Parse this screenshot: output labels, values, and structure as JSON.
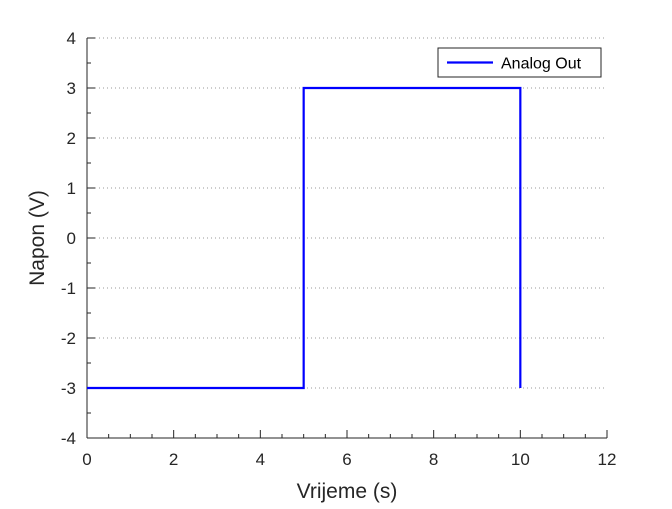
{
  "chart_data": {
    "type": "line",
    "xlabel": "Vrijeme (s)",
    "ylabel": "Napon (V)",
    "xlim": [
      0,
      12
    ],
    "ylim": [
      -4,
      4
    ],
    "xticks": [
      "0",
      "2",
      "4",
      "6",
      "8",
      "10",
      "12"
    ],
    "yticks": [
      "-4",
      "-3",
      "-2",
      "-1",
      "0",
      "1",
      "2",
      "3",
      "4"
    ],
    "grid": "horizontal dotted",
    "legend_position": "top-right",
    "series": [
      {
        "name": "Analog Out",
        "color": "#0000ff",
        "x": [
          0,
          5,
          5,
          10,
          10
        ],
        "y": [
          -3,
          -3,
          3,
          3,
          -3
        ]
      }
    ]
  }
}
